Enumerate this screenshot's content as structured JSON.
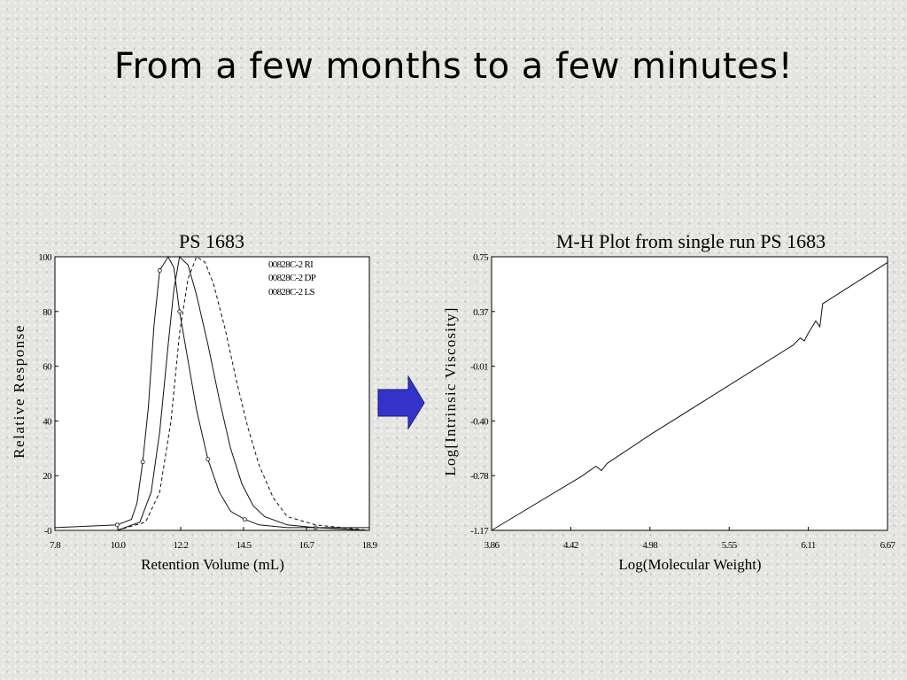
{
  "slide": {
    "title": "From a few months to a few minutes!"
  },
  "arrow": {
    "color": "#3333cc",
    "icon": "right-arrow-icon"
  },
  "chart_data": [
    {
      "type": "line",
      "title": "PS 1683",
      "xlabel": "Retention Volume (mL)",
      "ylabel": "Relative Response",
      "xlim": [
        7.8,
        18.9
      ],
      "ylim": [
        0,
        100
      ],
      "x_ticks": [
        "7.8",
        "10.0",
        "12.2",
        "14.5",
        "16.7",
        "18.9"
      ],
      "y_ticks": [
        "-0",
        "20",
        "40",
        "60",
        "80",
        "100"
      ],
      "legend": [
        "00828C-2 RI",
        "00828C-2 DP",
        "00828C-2 LS"
      ],
      "legend_position": "top-right",
      "series": [
        {
          "name": "00828C-2 RI",
          "style": "solid-with-circles",
          "x": [
            7.8,
            10.0,
            10.5,
            10.7,
            10.9,
            11.1,
            11.3,
            11.5,
            11.8,
            12.0,
            12.2,
            12.5,
            12.8,
            13.2,
            13.6,
            14.0,
            14.5,
            15.0,
            16.0,
            17.0,
            18.9
          ],
          "y": [
            1,
            2,
            4,
            10,
            25,
            45,
            75,
            95,
            100,
            96,
            80,
            62,
            44,
            26,
            14,
            7,
            4,
            2,
            1,
            1,
            1
          ]
        },
        {
          "name": "00828C-2 DP",
          "style": "solid",
          "x": [
            7.8,
            10.0,
            10.8,
            11.2,
            11.5,
            11.8,
            12.0,
            12.2,
            12.5,
            12.8,
            13.2,
            13.6,
            14.0,
            14.4,
            14.8,
            15.2,
            16.0,
            17.0,
            18.9
          ],
          "y": [
            0,
            0,
            3,
            14,
            36,
            68,
            88,
            100,
            97,
            86,
            68,
            48,
            30,
            17,
            9,
            5,
            2,
            1,
            0
          ]
        },
        {
          "name": "00828C-2 LS",
          "style": "dashed",
          "x": [
            7.8,
            10.0,
            11.0,
            11.5,
            11.9,
            12.2,
            12.5,
            12.8,
            13.1,
            13.4,
            13.8,
            14.2,
            14.6,
            15.0,
            15.5,
            16.0,
            17.0,
            18.9
          ],
          "y": [
            0,
            0,
            3,
            14,
            40,
            72,
            92,
            100,
            98,
            90,
            74,
            55,
            38,
            24,
            12,
            5,
            2,
            0
          ]
        }
      ]
    },
    {
      "type": "line",
      "title": "M-H Plot from single run PS 1683",
      "xlabel": "Log(Molecular Weight)",
      "ylabel": "Log[Intrinsic Viscosity]",
      "xlim": [
        3.86,
        6.67
      ],
      "ylim": [
        -1.17,
        0.75
      ],
      "x_ticks": [
        "3.86",
        "4.42",
        "4.98",
        "5.55",
        "6.11",
        "6.67"
      ],
      "y_ticks": [
        "-1.17",
        "-0.78",
        "-0.40",
        "-0.01",
        "0.37",
        "0.75"
      ],
      "series": [
        {
          "x": [
            3.86,
            4.5,
            4.6,
            4.64,
            4.68,
            5.0,
            5.5,
            6.0,
            6.05,
            6.08,
            6.1,
            6.13,
            6.16,
            6.19,
            6.21,
            6.67
          ],
          "y": [
            -1.17,
            -0.79,
            -0.72,
            -0.75,
            -0.7,
            -0.49,
            -0.18,
            0.13,
            0.18,
            0.16,
            0.2,
            0.25,
            0.3,
            0.26,
            0.42,
            0.71
          ]
        }
      ]
    }
  ]
}
